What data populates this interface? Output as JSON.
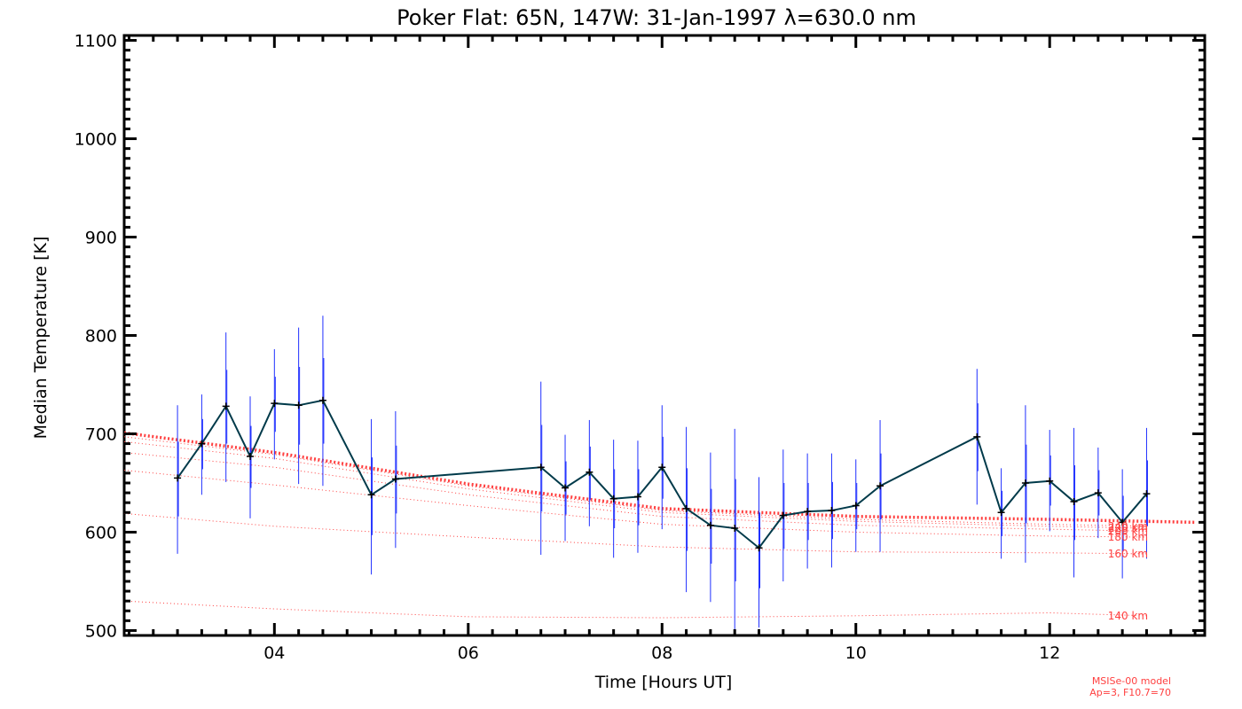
{
  "chart_data": {
    "type": "line",
    "title": "Poker Flat: 65N, 147W: 31-Jan-1997 λ=630.0 nm",
    "xlabel": "Time [Hours UT]",
    "ylabel": "Median Temperature [K]",
    "xlim": [
      2.45,
      13.6
    ],
    "ylim": [
      495,
      1105
    ],
    "xticks": [
      {
        "value": 4,
        "label": "04"
      },
      {
        "value": 6,
        "label": "06"
      },
      {
        "value": 8,
        "label": "08"
      },
      {
        "value": 10,
        "label": "10"
      },
      {
        "value": 12,
        "label": "12"
      }
    ],
    "yticks": [
      {
        "value": 500,
        "label": "500"
      },
      {
        "value": 600,
        "label": "600"
      },
      {
        "value": 700,
        "label": "700"
      },
      {
        "value": 800,
        "label": "800"
      },
      {
        "value": 900,
        "label": "900"
      },
      {
        "value": 1000,
        "label": "1000"
      },
      {
        "value": 1100,
        "label": "1100"
      }
    ],
    "measured": {
      "name": "Median temperature",
      "color": "#003a4a",
      "points": [
        {
          "x": 3.0,
          "y": 655,
          "lo": 578,
          "hi": 729,
          "lo1": 616,
          "hi1": 692
        },
        {
          "x": 3.25,
          "y": 690,
          "lo": 638,
          "hi": 740,
          "lo1": 664,
          "hi1": 715
        },
        {
          "x": 3.5,
          "y": 728,
          "lo": 651,
          "hi": 803,
          "lo1": 690,
          "hi1": 765
        },
        {
          "x": 3.75,
          "y": 677,
          "lo": 614,
          "hi": 738,
          "lo1": 645,
          "hi1": 708
        },
        {
          "x": 4.0,
          "y": 731,
          "lo": 674,
          "hi": 786,
          "lo1": 702,
          "hi1": 758
        },
        {
          "x": 4.25,
          "y": 729,
          "lo": 649,
          "hi": 808,
          "lo1": 689,
          "hi1": 768
        },
        {
          "x": 4.5,
          "y": 734,
          "lo": 647,
          "hi": 820,
          "lo1": 690,
          "hi1": 777
        },
        {
          "x": 5.0,
          "y": 638,
          "lo": 557,
          "hi": 715,
          "lo1": 597,
          "hi1": 676
        },
        {
          "x": 5.25,
          "y": 654,
          "lo": 584,
          "hi": 723,
          "lo1": 619,
          "hi1": 688
        },
        {
          "x": 6.75,
          "y": 666,
          "lo": 577,
          "hi": 753,
          "lo1": 621,
          "hi1": 709
        },
        {
          "x": 7.0,
          "y": 645,
          "lo": 591,
          "hi": 699,
          "lo1": 618,
          "hi1": 672
        },
        {
          "x": 7.25,
          "y": 661,
          "lo": 606,
          "hi": 714,
          "lo1": 633,
          "hi1": 687
        },
        {
          "x": 7.5,
          "y": 634,
          "lo": 574,
          "hi": 694,
          "lo1": 604,
          "hi1": 664
        },
        {
          "x": 7.75,
          "y": 636,
          "lo": 579,
          "hi": 693,
          "lo1": 607,
          "hi1": 664
        },
        {
          "x": 8.0,
          "y": 666,
          "lo": 603,
          "hi": 729,
          "lo1": 634,
          "hi1": 697
        },
        {
          "x": 8.25,
          "y": 624,
          "lo": 539,
          "hi": 707,
          "lo1": 581,
          "hi1": 665
        },
        {
          "x": 8.5,
          "y": 607,
          "lo": 529,
          "hi": 681,
          "lo1": 568,
          "hi1": 644
        },
        {
          "x": 8.75,
          "y": 604,
          "lo": 497,
          "hi": 705,
          "lo1": 550,
          "hi1": 654
        },
        {
          "x": 9.0,
          "y": 584,
          "lo": 503,
          "hi": 656,
          "lo1": 543,
          "hi1": 620
        },
        {
          "x": 9.25,
          "y": 617,
          "lo": 550,
          "hi": 684,
          "lo1": 583,
          "hi1": 650
        },
        {
          "x": 9.5,
          "y": 621,
          "lo": 563,
          "hi": 680,
          "lo1": 592,
          "hi1": 650
        },
        {
          "x": 9.75,
          "y": 622,
          "lo": 564,
          "hi": 680,
          "lo1": 593,
          "hi1": 651
        },
        {
          "x": 10.0,
          "y": 627,
          "lo": 580,
          "hi": 674,
          "lo1": 603,
          "hi1": 650
        },
        {
          "x": 10.25,
          "y": 647,
          "lo": 580,
          "hi": 714,
          "lo1": 613,
          "hi1": 680
        },
        {
          "x": 11.25,
          "y": 697,
          "lo": 628,
          "hi": 766,
          "lo1": 662,
          "hi1": 731
        },
        {
          "x": 11.5,
          "y": 620,
          "lo": 573,
          "hi": 665,
          "lo1": 596,
          "hi1": 642
        },
        {
          "x": 11.75,
          "y": 650,
          "lo": 569,
          "hi": 729,
          "lo1": 609,
          "hi1": 689
        },
        {
          "x": 12.0,
          "y": 652,
          "lo": 601,
          "hi": 704,
          "lo1": 627,
          "hi1": 678
        },
        {
          "x": 12.25,
          "y": 631,
          "lo": 554,
          "hi": 706,
          "lo1": 592,
          "hi1": 668
        },
        {
          "x": 12.5,
          "y": 640,
          "lo": 594,
          "hi": 686,
          "lo1": 617,
          "hi1": 663
        },
        {
          "x": 12.75,
          "y": 610,
          "lo": 553,
          "hi": 664,
          "lo1": 581,
          "hi1": 637
        },
        {
          "x": 13.0,
          "y": 639,
          "lo": 573,
          "hi": 706,
          "lo1": 606,
          "hi1": 673
        }
      ]
    },
    "model_series": [
      {
        "name": "140 km",
        "x": [
          2.45,
          4,
          6,
          8,
          10,
          12,
          13.0
        ],
        "y": [
          530,
          522,
          514,
          513,
          515,
          518,
          515
        ]
      },
      {
        "name": "160 km",
        "x": [
          2.45,
          4,
          6,
          8,
          10,
          12,
          13.0
        ],
        "y": [
          619,
          606,
          595,
          585,
          580,
          579,
          578
        ]
      },
      {
        "name": "180 km",
        "x": [
          2.45,
          4,
          6,
          8,
          10,
          12,
          13.0
        ],
        "y": [
          663,
          648,
          627,
          608,
          600,
          596,
          595
        ]
      },
      {
        "name": "200 km",
        "x": [
          2.45,
          4,
          6,
          8,
          10,
          12,
          13.0
        ],
        "y": [
          681,
          666,
          638,
          616,
          607,
          603,
          601
        ]
      },
      {
        "name": "220 km",
        "x": [
          2.45,
          4,
          6,
          8,
          10,
          12,
          13.0
        ],
        "y": [
          692,
          675,
          644,
          620,
          611,
          606,
          604
        ]
      },
      {
        "name": "240 km",
        "x": [
          2.45,
          4,
          6,
          8,
          10,
          12,
          13.0
        ],
        "y": [
          697,
          679,
          647,
          622,
          613,
          608,
          606
        ]
      }
    ],
    "model_exo": {
      "name": "exospheric",
      "x": [
        2.45,
        4,
        6,
        8,
        10,
        12,
        13.5
      ],
      "y": [
        701,
        681,
        649,
        624,
        616,
        613,
        610
      ]
    },
    "model_color": "#ff4040",
    "error_color": "#2030ff",
    "model_labels": [
      "140 km",
      "160 km",
      "180 km",
      "200 km",
      "220 km",
      "240 km"
    ],
    "note_lines": [
      "MSISe-00 model",
      "Ap=3, F10.7=70"
    ]
  }
}
